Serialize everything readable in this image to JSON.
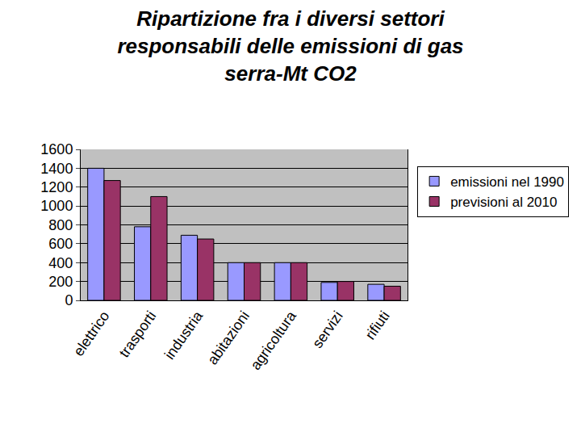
{
  "chart_data": {
    "type": "bar",
    "title": "Ripartizione fra i diversi settori responsabili delle emissioni di gas serra-Mt CO2",
    "categories": [
      "elettrico",
      "trasporti",
      "industria",
      "abitazioni",
      "agricoltura",
      "servizi",
      "rifiuti"
    ],
    "series": [
      {
        "name": "emissioni nel 1990",
        "color": "#9999ff",
        "values": [
          1400,
          780,
          690,
          400,
          400,
          190,
          170
        ]
      },
      {
        "name": "previsioni al 2010",
        "color": "#993366",
        "values": [
          1270,
          1100,
          650,
          400,
          400,
          200,
          150
        ]
      }
    ],
    "ylim": [
      0,
      1600
    ],
    "yticks": [
      0,
      200,
      400,
      600,
      800,
      1000,
      1200,
      1400,
      1600
    ],
    "grid": true,
    "legend": "right"
  }
}
